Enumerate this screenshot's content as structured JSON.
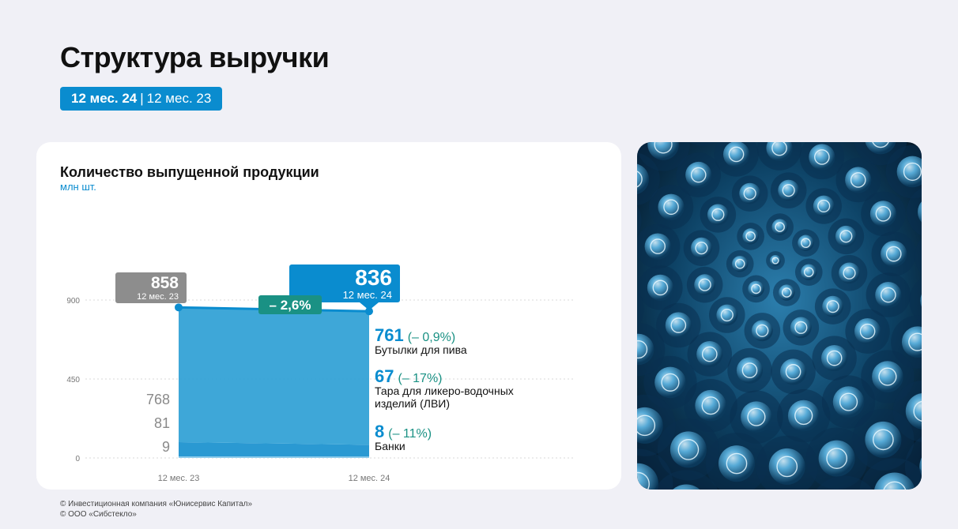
{
  "page": {
    "title": "Структура выручки",
    "period": {
      "current": "12 мес. 24",
      "separator": "|",
      "previous": "12 мес. 23"
    }
  },
  "footer": {
    "line1": "© Инвестиционная компания «Юнисервис Капитал»",
    "line2": "© ООО «Сибстекло»"
  },
  "colors": {
    "accent": "#0a8ccf",
    "beer": "#34a2d6",
    "lvi": "#2a99d2",
    "cans": "#8ccbeb",
    "change": "#1a9184",
    "prev_badge": "#8d8d8d"
  },
  "chart_data": {
    "type": "area",
    "title": "Количество выпущенной продукции",
    "unit": "млн шт.",
    "x": [
      "12 мес. 23",
      "12 мес. 24"
    ],
    "y_ticks": [
      0,
      450,
      900
    ],
    "ylim": [
      0,
      900
    ],
    "grid": true,
    "totals": [
      {
        "value": "858",
        "label": "12 мес. 23"
      },
      {
        "value": "836",
        "label": "12 мес. 24"
      }
    ],
    "change": "– 2,6%",
    "series": [
      {
        "name": "Бутылки для пива",
        "values": [
          768,
          761
        ],
        "start_label": "768",
        "end_label": "761",
        "change": "(– 0,9%)"
      },
      {
        "name": "Тара для ликеро-водочных изделий (ЛВИ)",
        "name_lines": [
          "Тара для ликеро-водочных",
          "изделий (ЛВИ)"
        ],
        "values": [
          81,
          67
        ],
        "start_label": "81",
        "end_label": "67",
        "change": "(– 17%)"
      },
      {
        "name": "Банки",
        "values": [
          9,
          8
        ],
        "start_label": "9",
        "end_label": "8",
        "change": "(– 11%)"
      }
    ]
  },
  "image": {
    "subject": "glass-bottles-photo"
  }
}
